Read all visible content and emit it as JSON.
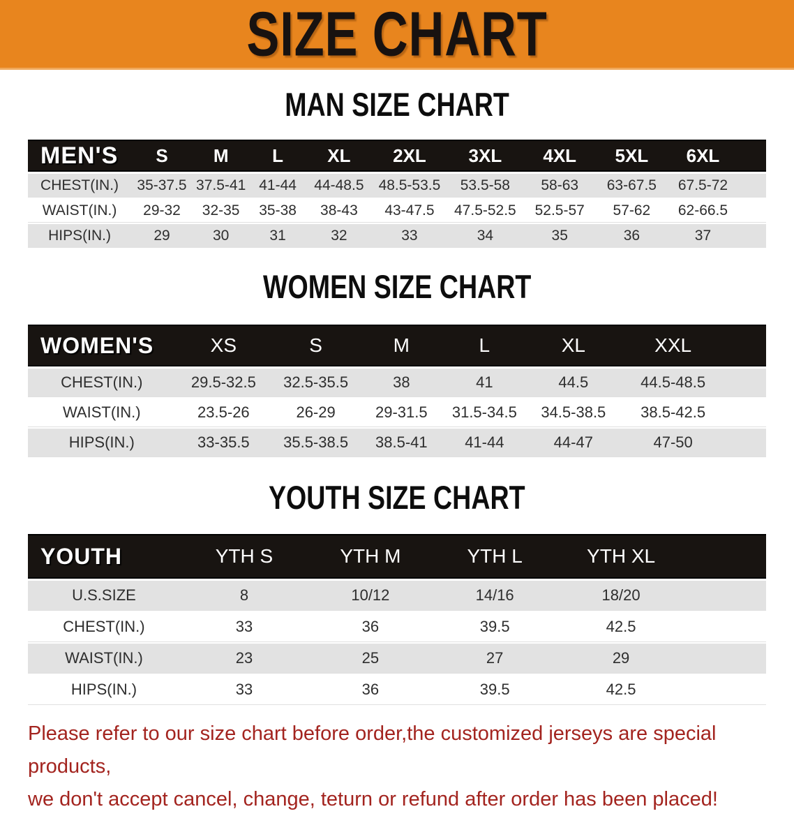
{
  "banner": {
    "title": "SIZE CHART",
    "bg_color": "#E8851E",
    "text_color": "#181210"
  },
  "sections": [
    {
      "title": "MAN SIZE CHART",
      "table": {
        "header_label": "MEN'S",
        "columns": [
          "S",
          "M",
          "L",
          "XL",
          "2XL",
          "3XL",
          "4XL",
          "5XL",
          "6XL"
        ],
        "rows": [
          {
            "label": "CHEST(IN.)",
            "values": [
              "35-37.5",
              "37.5-41",
              "41-44",
              "44-48.5",
              "48.5-53.5",
              "53.5-58",
              "58-63",
              "63-67.5",
              "67.5-72"
            ]
          },
          {
            "label": "WAIST(IN.)",
            "values": [
              "29-32",
              "32-35",
              "35-38",
              "38-43",
              "43-47.5",
              "47.5-52.5",
              "52.5-57",
              "57-62",
              "62-66.5"
            ]
          },
          {
            "label": "HIPS(IN.)",
            "values": [
              "29",
              "30",
              "31",
              "32",
              "33",
              "34",
              "35",
              "36",
              "37"
            ]
          }
        ]
      }
    },
    {
      "title": "WOMEN SIZE CHART",
      "table": {
        "header_label": "WOMEN'S",
        "columns": [
          "XS",
          "S",
          "M",
          "L",
          "XL",
          "XXL"
        ],
        "rows": [
          {
            "label": "CHEST(IN.)",
            "values": [
              "29.5-32.5",
              "32.5-35.5",
              "38",
              "41",
              "44.5",
              "44.5-48.5"
            ]
          },
          {
            "label": "WAIST(IN.)",
            "values": [
              "23.5-26",
              "26-29",
              "29-31.5",
              "31.5-34.5",
              "34.5-38.5",
              "38.5-42.5"
            ]
          },
          {
            "label": "HIPS(IN.)",
            "values": [
              "33-35.5",
              "35.5-38.5",
              "38.5-41",
              "41-44",
              "44-47",
              "47-50"
            ]
          }
        ]
      }
    },
    {
      "title": "YOUTH SIZE CHART",
      "table": {
        "header_label": "YOUTH",
        "columns": [
          "YTH S",
          "YTH M",
          "YTH L",
          "YTH XL"
        ],
        "rows": [
          {
            "label": "U.S.SIZE",
            "values": [
              "8",
              "10/12",
              "14/16",
              "18/20"
            ]
          },
          {
            "label": "CHEST(IN.)",
            "values": [
              "33",
              "36",
              "39.5",
              "42.5"
            ]
          },
          {
            "label": "WAIST(IN.)",
            "values": [
              "23",
              "25",
              "27",
              "29"
            ]
          },
          {
            "label": "HIPS(IN.)",
            "values": [
              "33",
              "36",
              "39.5",
              "42.5"
            ]
          }
        ]
      }
    }
  ],
  "footer": {
    "line1": "Please refer to our size chart before order,the customized jerseys are special products,",
    "line2": "we don't accept cancel, change, teturn or refund after order has been placed!",
    "text_color": "#A3241F"
  }
}
